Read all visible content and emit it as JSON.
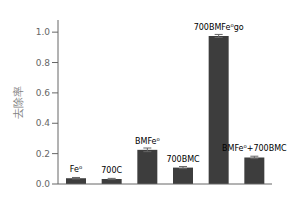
{
  "chart_data": {
    "type": "bar",
    "categories": [
      "Fe⁰",
      "700C",
      "BMFe⁰",
      "700BMC",
      "700BMFe⁰go",
      "BMFe⁰+700BMC"
    ],
    "values": [
      0.038,
      0.033,
      0.225,
      0.108,
      0.975,
      0.175
    ],
    "errors": [
      0.005,
      0.004,
      0.012,
      0.007,
      0.01,
      0.008
    ],
    "color": "#3d3d3d",
    "ylabel": "去除率",
    "ylim": [
      0,
      1.08
    ],
    "yticks": [
      {
        "value": 0,
        "label": "0.0"
      },
      0.2,
      0.4,
      0.6,
      0.8,
      {
        "value": 1,
        "label": "1.0"
      }
    ],
    "grid": false,
    "tick_labels": "y"
  }
}
